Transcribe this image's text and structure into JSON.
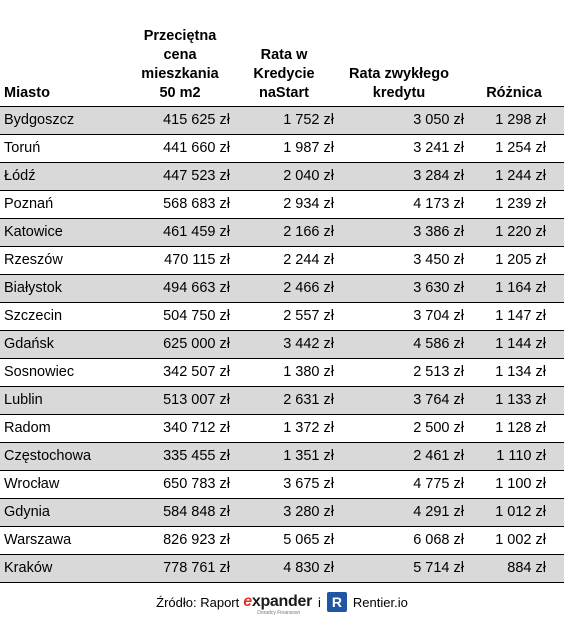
{
  "table": {
    "headers": [
      "Miasto",
      "Przeciętna cena mieszkania 50 m2",
      "Rata w Kredycie naStart",
      "Rata zwykłego kredytu",
      "Różnica"
    ],
    "rows": [
      [
        "Bydgoszcz",
        "415 625 zł",
        "1 752 zł",
        "3 050 zł",
        "1 298 zł"
      ],
      [
        "Toruń",
        "441 660 zł",
        "1 987 zł",
        "3 241 zł",
        "1 254 zł"
      ],
      [
        "Łódź",
        "447 523 zł",
        "2 040 zł",
        "3 284 zł",
        "1 244 zł"
      ],
      [
        "Poznań",
        "568 683 zł",
        "2 934 zł",
        "4 173 zł",
        "1 239 zł"
      ],
      [
        "Katowice",
        "461 459 zł",
        "2 166 zł",
        "3 386 zł",
        "1 220 zł"
      ],
      [
        "Rzeszów",
        "470 115 zł",
        "2 244 zł",
        "3 450 zł",
        "1 205 zł"
      ],
      [
        "Białystok",
        "494 663 zł",
        "2 466 zł",
        "3 630 zł",
        "1 164 zł"
      ],
      [
        "Szczecin",
        "504 750 zł",
        "2 557 zł",
        "3 704 zł",
        "1 147 zł"
      ],
      [
        "Gdańsk",
        "625 000 zł",
        "3 442 zł",
        "4 586 zł",
        "1 144 zł"
      ],
      [
        "Sosnowiec",
        "342 507 zł",
        "1 380 zł",
        "2 513 zł",
        "1 134 zł"
      ],
      [
        "Lublin",
        "513 007 zł",
        "2 631 zł",
        "3 764 zł",
        "1 133 zł"
      ],
      [
        "Radom",
        "340 712 zł",
        "1 372 zł",
        "2 500 zł",
        "1 128 zł"
      ],
      [
        "Częstochowa",
        "335 455 zł",
        "1 351 zł",
        "2 461 zł",
        "1 110 zł"
      ],
      [
        "Wrocław",
        "650 783 zł",
        "3 675 zł",
        "4 775 zł",
        "1 100 zł"
      ],
      [
        "Gdynia",
        "584 848 zł",
        "3 280 zł",
        "4 291 zł",
        "1 012 zł"
      ],
      [
        "Warszawa",
        "826 923 zł",
        "5 065 zł",
        "6 068 zł",
        "1 002 zł"
      ],
      [
        "Kraków",
        "778 761 zł",
        "4 830 zł",
        "5 714 zł",
        "884 zł"
      ]
    ]
  },
  "source": {
    "prefix": "Źródło: Raport",
    "expander_e": "e",
    "expander_rest": "xpander",
    "expander_tagline": "Doradcy Finansowi",
    "separator": "i",
    "rentier_letter": "R",
    "rentier_name": "Rentier.io"
  },
  "colors": {
    "row_shade": "#d9d9d9",
    "expander_red": "#e4312b",
    "rentier_blue": "#1f56a3"
  }
}
